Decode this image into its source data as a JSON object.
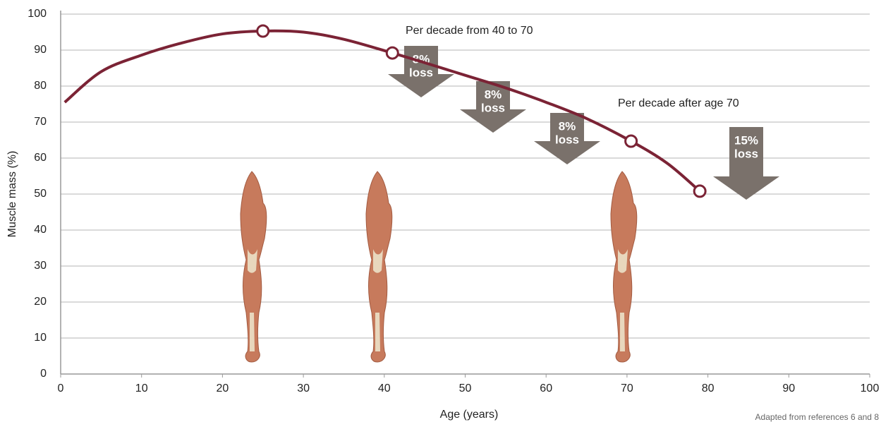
{
  "chart_data": {
    "type": "line",
    "x_label": "Age (years)",
    "y_label": "Muscle mass (%)",
    "xlim": [
      0,
      100
    ],
    "xticks": [
      0,
      10,
      20,
      30,
      40,
      50,
      60,
      70,
      80,
      90,
      100
    ],
    "ylim": [
      0,
      100
    ],
    "yticks": [
      0,
      10,
      20,
      30,
      40,
      50,
      60,
      70,
      80,
      90,
      100
    ],
    "grid": true,
    "color": "#7b2335",
    "line": {
      "x": [
        0.5,
        5,
        10,
        15,
        20,
        25,
        30,
        35,
        41,
        45,
        50,
        55,
        60,
        65,
        70.5,
        75,
        79
      ],
      "values": [
        75.5,
        84,
        88.6,
        92,
        94.5,
        95.3,
        95,
        93,
        89.2,
        86.5,
        83,
        79.5,
        75.5,
        71,
        64.7,
        58.5,
        50.8
      ]
    },
    "points": {
      "x": [
        25,
        41,
        70.5,
        79
      ],
      "values": [
        95.3,
        89.2,
        64.7,
        50.8
      ]
    },
    "annotations": [
      "Per decade from 40 to 70",
      "Per decade after age 70"
    ],
    "arrows": [
      [
        "8%",
        "loss"
      ],
      [
        "8%",
        "loss"
      ],
      [
        "8%",
        "loss"
      ],
      [
        "15%",
        "loss"
      ]
    ],
    "source": "Adapted from references 6 and 8"
  }
}
